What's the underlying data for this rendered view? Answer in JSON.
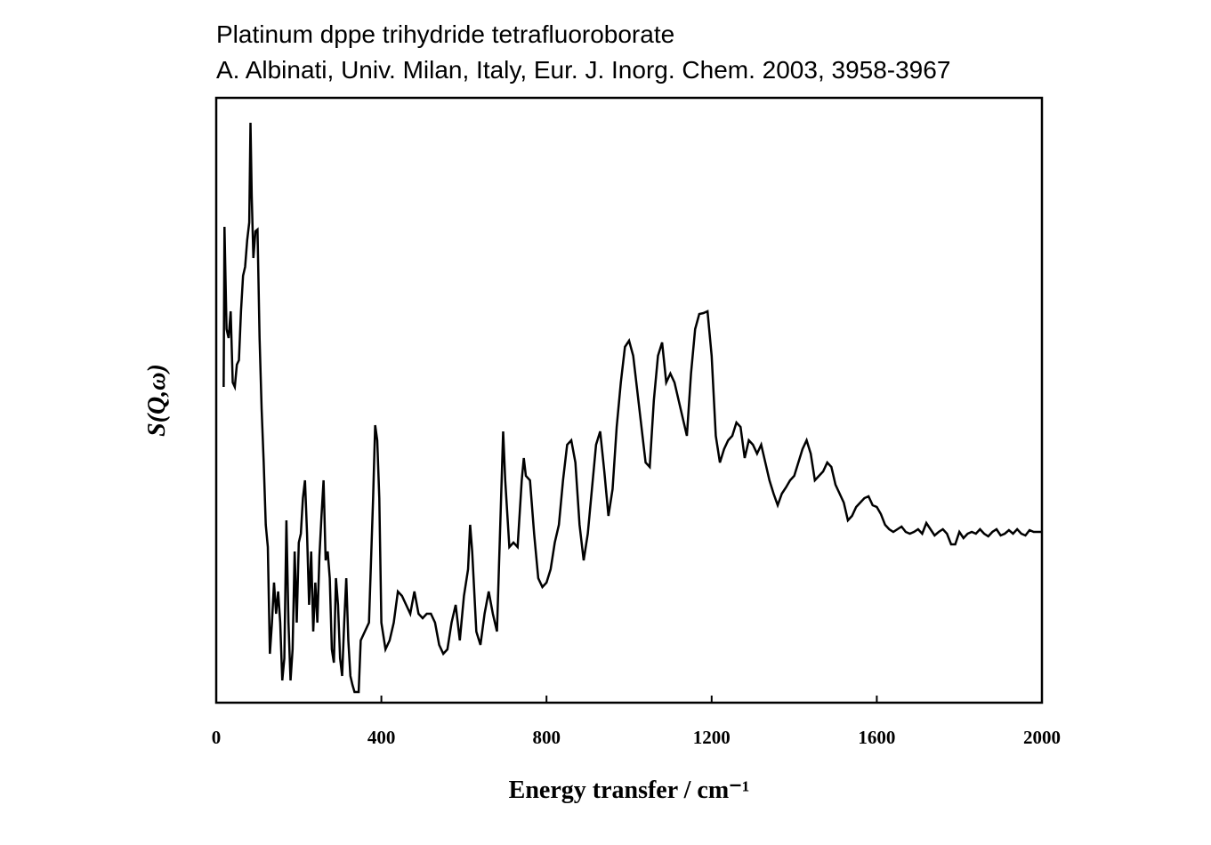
{
  "chart_data": {
    "type": "line",
    "title": "Platinum dppe trihydride tetrafluoroborate",
    "subtitle": "A. Albinati, Univ. Milan, Italy, Eur. J. Inorg. Chem. 2003, 3958-3967",
    "x_label": "Energy transfer / cm⁻¹",
    "y_label": "S(Q,ω)",
    "xlim": [
      0,
      2000
    ],
    "xticks": [
      0,
      400,
      800,
      1200,
      1600,
      2000
    ],
    "ylim": [
      0,
      680
    ],
    "color": "#000000",
    "x": [
      18,
      20,
      25,
      30,
      35,
      40,
      45,
      50,
      55,
      60,
      65,
      70,
      75,
      80,
      83,
      86,
      90,
      95,
      100,
      105,
      110,
      115,
      120,
      125,
      130,
      135,
      140,
      145,
      150,
      155,
      160,
      165,
      170,
      175,
      180,
      185,
      190,
      195,
      200,
      205,
      210,
      215,
      220,
      225,
      230,
      235,
      240,
      245,
      250,
      255,
      260,
      265,
      270,
      275,
      280,
      285,
      290,
      295,
      300,
      305,
      310,
      315,
      320,
      325,
      330,
      335,
      340,
      345,
      350,
      360,
      370,
      380,
      385,
      390,
      395,
      400,
      410,
      420,
      430,
      440,
      450,
      460,
      470,
      480,
      490,
      500,
      510,
      520,
      530,
      540,
      550,
      560,
      570,
      580,
      590,
      600,
      610,
      615,
      620,
      630,
      640,
      650,
      660,
      670,
      680,
      690,
      695,
      700,
      710,
      720,
      730,
      740,
      745,
      750,
      760,
      770,
      780,
      790,
      800,
      810,
      820,
      830,
      840,
      850,
      860,
      870,
      880,
      890,
      900,
      910,
      920,
      930,
      940,
      950,
      960,
      970,
      980,
      990,
      1000,
      1010,
      1020,
      1030,
      1040,
      1050,
      1060,
      1070,
      1080,
      1090,
      1100,
      1110,
      1120,
      1130,
      1140,
      1150,
      1160,
      1170,
      1180,
      1190,
      1200,
      1210,
      1220,
      1230,
      1240,
      1250,
      1260,
      1270,
      1280,
      1290,
      1300,
      1310,
      1320,
      1330,
      1340,
      1350,
      1360,
      1370,
      1380,
      1390,
      1400,
      1410,
      1420,
      1430,
      1440,
      1450,
      1460,
      1470,
      1480,
      1490,
      1500,
      1510,
      1520,
      1530,
      1540,
      1550,
      1560,
      1570,
      1580,
      1590,
      1600,
      1610,
      1620,
      1630,
      1640,
      1650,
      1660,
      1670,
      1680,
      1690,
      1700,
      1710,
      1720,
      1730,
      1740,
      1750,
      1760,
      1770,
      1780,
      1790,
      1800,
      1810,
      1820,
      1830,
      1840,
      1850,
      1860,
      1870,
      1880,
      1890,
      1900,
      1910,
      1920,
      1930,
      1940,
      1950,
      1960,
      1970,
      1980,
      2000
    ],
    "values": [
      355,
      535,
      420,
      410,
      440,
      360,
      355,
      380,
      385,
      440,
      480,
      490,
      520,
      540,
      652,
      570,
      500,
      530,
      532,
      410,
      330,
      270,
      200,
      175,
      55,
      90,
      135,
      100,
      125,
      90,
      25,
      50,
      205,
      90,
      25,
      60,
      170,
      90,
      180,
      190,
      230,
      250,
      190,
      110,
      170,
      80,
      135,
      90,
      165,
      210,
      250,
      160,
      170,
      140,
      60,
      45,
      140,
      110,
      50,
      30,
      90,
      140,
      70,
      30,
      20,
      12,
      12,
      12,
      70,
      80,
      90,
      230,
      312,
      295,
      230,
      90,
      60,
      70,
      90,
      125,
      120,
      110,
      100,
      125,
      100,
      95,
      100,
      100,
      90,
      65,
      55,
      60,
      90,
      110,
      70,
      120,
      150,
      200,
      170,
      80,
      65,
      100,
      125,
      100,
      80,
      230,
      305,
      250,
      175,
      180,
      175,
      250,
      275,
      255,
      250,
      190,
      140,
      130,
      135,
      150,
      180,
      200,
      250,
      290,
      295,
      270,
      200,
      160,
      190,
      240,
      290,
      305,
      260,
      210,
      240,
      310,
      360,
      400,
      407,
      390,
      350,
      310,
      270,
      265,
      340,
      390,
      405,
      360,
      370,
      360,
      340,
      320,
      300,
      370,
      420,
      437,
      438,
      440,
      390,
      300,
      270,
      285,
      295,
      300,
      315,
      310,
      275,
      295,
      290,
      280,
      290,
      270,
      250,
      235,
      222,
      235,
      242,
      250,
      255,
      270,
      285,
      295,
      280,
      250,
      255,
      260,
      270,
      265,
      245,
      235,
      225,
      205,
      210,
      220,
      225,
      230,
      232,
      222,
      220,
      212,
      200,
      195,
      192,
      195,
      198,
      192,
      190,
      192,
      195,
      190,
      202,
      195,
      188,
      192,
      195,
      190,
      178,
      178,
      192,
      185,
      190,
      192,
      190,
      195,
      190,
      187,
      192,
      195,
      188,
      190,
      194,
      190,
      195,
      190,
      188,
      194,
      192,
      192
    ]
  }
}
